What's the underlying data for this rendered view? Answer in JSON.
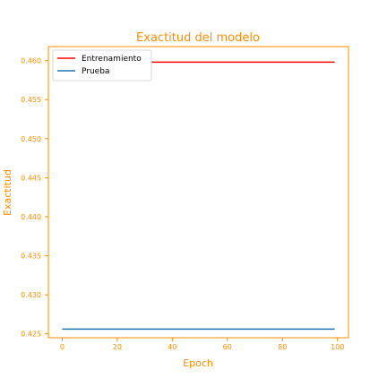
{
  "chart_data": {
    "type": "line",
    "title": "Exactitud del modelo",
    "xlabel": "Epoch",
    "ylabel": "Exactitud",
    "xlim": [
      -5,
      104
    ],
    "ylim": [
      0.4245,
      0.4618
    ],
    "x_ticks": [
      0,
      20,
      40,
      60,
      80,
      100
    ],
    "y_ticks": [
      0.425,
      0.43,
      0.435,
      0.44,
      0.445,
      0.45,
      0.455,
      0.46
    ],
    "grid": false,
    "legend_position": "top-left",
    "text_color": "#ff8c00",
    "series": [
      {
        "name": "Entrenamiento",
        "color": "#ff0000",
        "x": [
          0,
          99
        ],
        "values": [
          0.4598,
          0.4598
        ]
      },
      {
        "name": "Prueba",
        "color": "#1f77b4",
        "x": [
          0,
          99
        ],
        "values": [
          0.4256,
          0.4256
        ]
      }
    ]
  }
}
